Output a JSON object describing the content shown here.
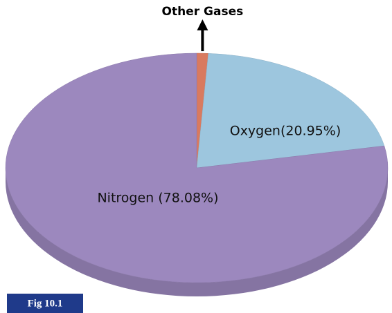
{
  "chart_data": {
    "type": "pie",
    "categories": [
      "Other Gases",
      "Oxygen(20.95%)",
      "Nitrogen (78.08%)"
    ],
    "values": [
      0.97,
      20.95,
      78.08
    ],
    "colors": [
      "#d97a5f",
      "#9dc6de",
      "#9c88be"
    ],
    "caption": "Fig 10.1"
  }
}
